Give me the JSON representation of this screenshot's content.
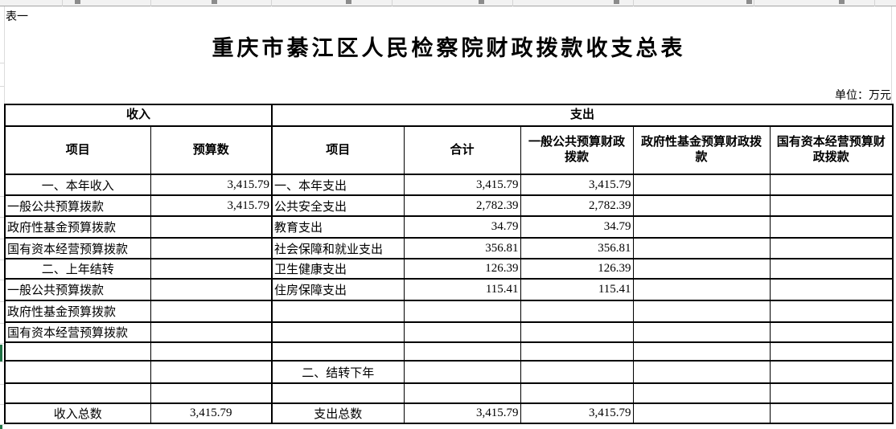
{
  "sheet": {
    "table_label": "表一",
    "title": "重庆市綦江区人民检察院财政拨款收支总表",
    "unit_note": "单位：万元"
  },
  "table": {
    "income_header": "收入",
    "expense_header": "支出",
    "columns": [
      "项目",
      "预算数",
      "项目",
      "合计",
      "一般公共预算财政拨款",
      "政府性基金预算财政拨款",
      "国有资本经营预算财政拨款"
    ],
    "rows": [
      {
        "cells": [
          {
            "t": "一、本年收入",
            "a": "c"
          },
          {
            "t": "3,415.79",
            "a": "r"
          },
          {
            "t": "一、本年支出",
            "a": "l"
          },
          {
            "t": "3,415.79",
            "a": "r"
          },
          {
            "t": "3,415.79",
            "a": "r"
          },
          {
            "t": "",
            "a": "l"
          },
          {
            "t": "",
            "a": "l"
          }
        ]
      },
      {
        "cells": [
          {
            "t": "一般公共预算拨款",
            "a": "l"
          },
          {
            "t": "3,415.79",
            "a": "r"
          },
          {
            "t": "公共安全支出",
            "a": "l"
          },
          {
            "t": "2,782.39",
            "a": "r"
          },
          {
            "t": "2,782.39",
            "a": "r"
          },
          {
            "t": "",
            "a": "l"
          },
          {
            "t": "",
            "a": "l"
          }
        ]
      },
      {
        "cells": [
          {
            "t": "政府性基金预算拨款",
            "a": "l"
          },
          {
            "t": "",
            "a": "r"
          },
          {
            "t": "教育支出",
            "a": "l"
          },
          {
            "t": "34.79",
            "a": "r"
          },
          {
            "t": "34.79",
            "a": "r"
          },
          {
            "t": "",
            "a": "l"
          },
          {
            "t": "",
            "a": "l"
          }
        ]
      },
      {
        "cells": [
          {
            "t": "国有资本经营预算拨款",
            "a": "l"
          },
          {
            "t": "",
            "a": "r"
          },
          {
            "t": "社会保障和就业支出",
            "a": "l"
          },
          {
            "t": "356.81",
            "a": "r"
          },
          {
            "t": "356.81",
            "a": "r"
          },
          {
            "t": "",
            "a": "l"
          },
          {
            "t": "",
            "a": "l"
          }
        ]
      },
      {
        "cells": [
          {
            "t": "二、上年结转",
            "a": "c"
          },
          {
            "t": "",
            "a": "r"
          },
          {
            "t": "卫生健康支出",
            "a": "l"
          },
          {
            "t": "126.39",
            "a": "r"
          },
          {
            "t": "126.39",
            "a": "r"
          },
          {
            "t": "",
            "a": "l"
          },
          {
            "t": "",
            "a": "l"
          }
        ]
      },
      {
        "cells": [
          {
            "t": "一般公共预算拨款",
            "a": "l"
          },
          {
            "t": "",
            "a": "r"
          },
          {
            "t": "住房保障支出",
            "a": "l"
          },
          {
            "t": "115.41",
            "a": "r"
          },
          {
            "t": "115.41",
            "a": "r"
          },
          {
            "t": "",
            "a": "l"
          },
          {
            "t": "",
            "a": "l"
          }
        ]
      },
      {
        "cells": [
          {
            "t": "政府性基金预算拨款",
            "a": "l"
          },
          {
            "t": "",
            "a": "r"
          },
          {
            "t": "",
            "a": "l"
          },
          {
            "t": "",
            "a": "r"
          },
          {
            "t": "",
            "a": "r"
          },
          {
            "t": "",
            "a": "l"
          },
          {
            "t": "",
            "a": "l"
          }
        ]
      },
      {
        "cells": [
          {
            "t": "国有资本经营预算拨款",
            "a": "l"
          },
          {
            "t": "",
            "a": "r"
          },
          {
            "t": "",
            "a": "l"
          },
          {
            "t": "",
            "a": "r"
          },
          {
            "t": "",
            "a": "r"
          },
          {
            "t": "",
            "a": "l"
          },
          {
            "t": "",
            "a": "l"
          }
        ]
      },
      {
        "cells": [
          {
            "t": "",
            "a": "l"
          },
          {
            "t": "",
            "a": "r"
          },
          {
            "t": "",
            "a": "l"
          },
          {
            "t": "",
            "a": "r"
          },
          {
            "t": "",
            "a": "r"
          },
          {
            "t": "",
            "a": "l"
          },
          {
            "t": "",
            "a": "l"
          }
        ]
      },
      {
        "cells": [
          {
            "t": "",
            "a": "l"
          },
          {
            "t": "",
            "a": "r"
          },
          {
            "t": "二、结转下年",
            "a": "c"
          },
          {
            "t": "",
            "a": "r"
          },
          {
            "t": "",
            "a": "r"
          },
          {
            "t": "",
            "a": "l"
          },
          {
            "t": "",
            "a": "l"
          }
        ]
      },
      {
        "cells": [
          {
            "t": "",
            "a": "l"
          },
          {
            "t": "",
            "a": "r"
          },
          {
            "t": "",
            "a": "l"
          },
          {
            "t": "",
            "a": "r"
          },
          {
            "t": "",
            "a": "r"
          },
          {
            "t": "",
            "a": "l"
          },
          {
            "t": "",
            "a": "l"
          }
        ]
      },
      {
        "cells": [
          {
            "t": "收入总数",
            "a": "c"
          },
          {
            "t": "3,415.79",
            "a": "c"
          },
          {
            "t": "支出总数",
            "a": "c"
          },
          {
            "t": "3,415.79",
            "a": "r"
          },
          {
            "t": "3,415.79",
            "a": "r"
          },
          {
            "t": "",
            "a": "l"
          },
          {
            "t": "",
            "a": "l"
          }
        ]
      }
    ]
  },
  "colors": {
    "selection_green": "#217346",
    "grid_black": "#000000"
  }
}
